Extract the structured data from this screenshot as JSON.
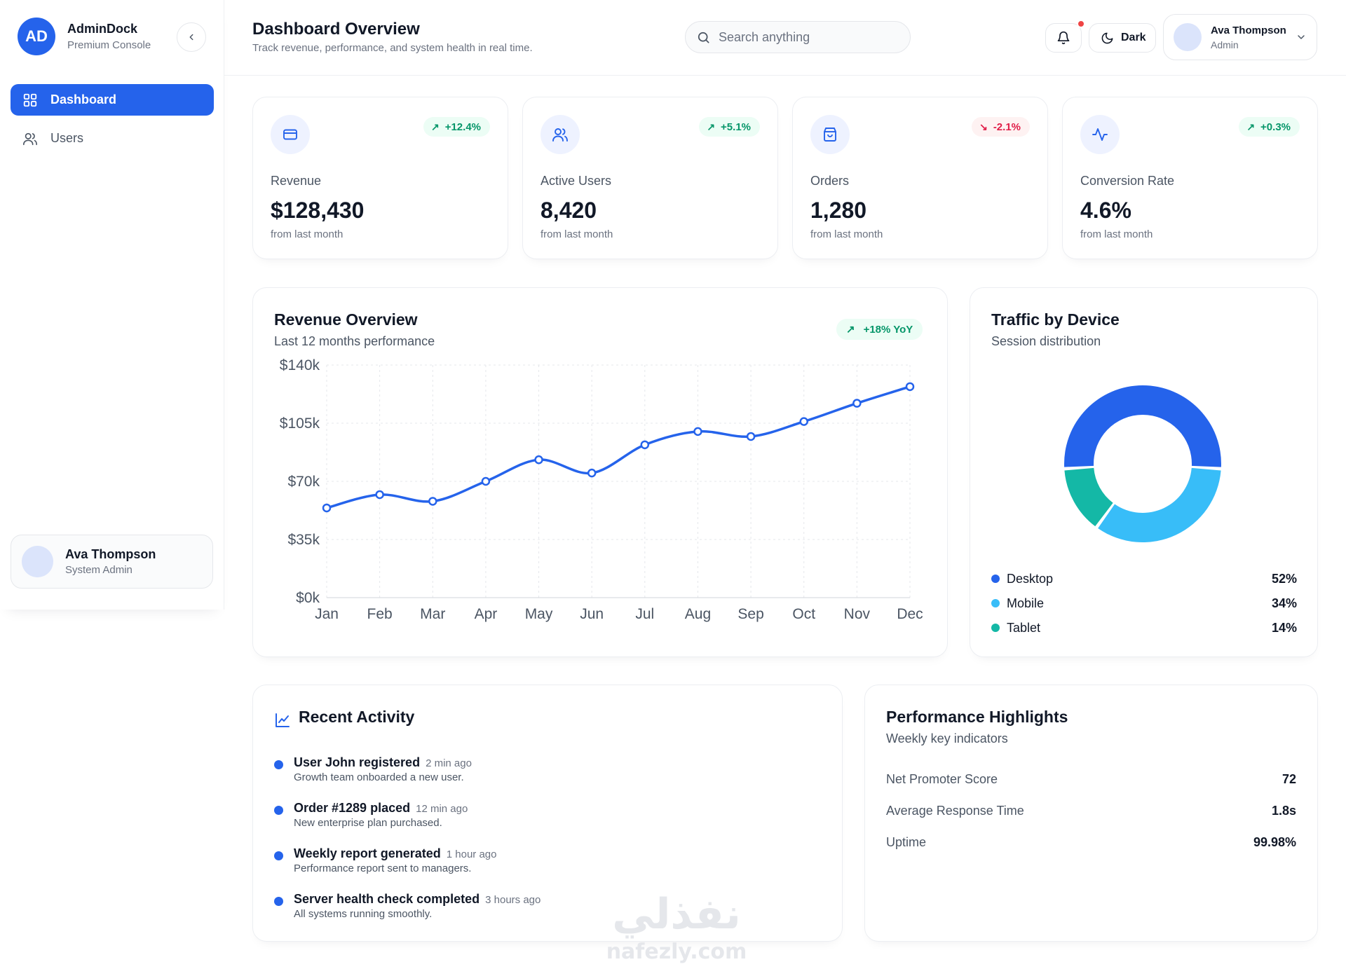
{
  "brand": {
    "logo_text": "AD",
    "name": "AdminDock",
    "subtitle": "Premium Console"
  },
  "sidebar": {
    "items": [
      {
        "label": "Dashboard",
        "icon": "grid-icon",
        "active": true
      },
      {
        "label": "Users",
        "icon": "users-icon",
        "active": false
      }
    ],
    "user": {
      "name": "Ava Thompson",
      "role": "System Admin"
    }
  },
  "header": {
    "title": "Dashboard Overview",
    "subtitle": "Track revenue, performance, and system health in real time.",
    "search_placeholder": "Search anything",
    "theme_label": "Dark",
    "profile": {
      "name": "Ava Thompson",
      "role": "Admin"
    }
  },
  "stats": [
    {
      "label": "Revenue",
      "value": "$128,430",
      "change": "+12.4%",
      "direction": "up",
      "sub": "from last month",
      "icon": "credit-card-icon"
    },
    {
      "label": "Active Users",
      "value": "8,420",
      "change": "+5.1%",
      "direction": "up",
      "sub": "from last month",
      "icon": "users-icon"
    },
    {
      "label": "Orders",
      "value": "1,280",
      "change": "-2.1%",
      "direction": "down",
      "sub": "from last month",
      "icon": "shopping-bag-icon"
    },
    {
      "label": "Conversion Rate",
      "value": "4.6%",
      "change": "+0.3%",
      "direction": "up",
      "sub": "from last month",
      "icon": "activity-icon"
    }
  ],
  "revenue_panel": {
    "title": "Revenue Overview",
    "subtitle": "Last 12 months performance",
    "badge": "+18% YoY"
  },
  "traffic_panel": {
    "title": "Traffic by Device",
    "subtitle": "Session distribution"
  },
  "activity_panel": {
    "title": "Recent Activity",
    "items": [
      {
        "title": "User John registered",
        "time": "2 min ago",
        "desc": "Growth team onboarded a new user."
      },
      {
        "title": "Order #1289 placed",
        "time": "12 min ago",
        "desc": "New enterprise plan purchased."
      },
      {
        "title": "Weekly report generated",
        "time": "1 hour ago",
        "desc": "Performance report sent to managers."
      },
      {
        "title": "Server health check completed",
        "time": "3 hours ago",
        "desc": "All systems running smoothly."
      }
    ]
  },
  "performance_panel": {
    "title": "Performance Highlights",
    "subtitle": "Weekly key indicators",
    "rows": [
      {
        "label": "Net Promoter Score",
        "value": "72"
      },
      {
        "label": "Average Response Time",
        "value": "1.8s"
      },
      {
        "label": "Uptime",
        "value": "99.98%"
      }
    ]
  },
  "watermark": {
    "arabic": "نفذلي",
    "latin": "nafezly.com"
  },
  "colors": {
    "primary": "#2563eb",
    "sky": "#38bdf8",
    "teal": "#14b8a6",
    "up": "#059669",
    "down": "#e11d48"
  },
  "chart_data": [
    {
      "type": "line",
      "categories": [
        "Jan",
        "Feb",
        "Mar",
        "Apr",
        "May",
        "Jun",
        "Jul",
        "Aug",
        "Sep",
        "Oct",
        "Nov",
        "Dec"
      ],
      "values": [
        54,
        62,
        58,
        70,
        83,
        75,
        92,
        100,
        97,
        106,
        117,
        127
      ],
      "y_ticks": [
        "$0k",
        "$35k",
        "$70k",
        "$105k",
        "$140k"
      ],
      "ylim": [
        0,
        140
      ],
      "y_unit": "$k",
      "grid": true,
      "color": "#2563eb"
    },
    {
      "type": "pie",
      "labels": [
        "Desktop",
        "Mobile",
        "Tablet"
      ],
      "values": [
        52,
        34,
        14
      ],
      "display": [
        "52%",
        "34%",
        "14%"
      ],
      "colors": [
        "#2563eb",
        "#38bdf8",
        "#14b8a6"
      ],
      "donut": true
    }
  ]
}
